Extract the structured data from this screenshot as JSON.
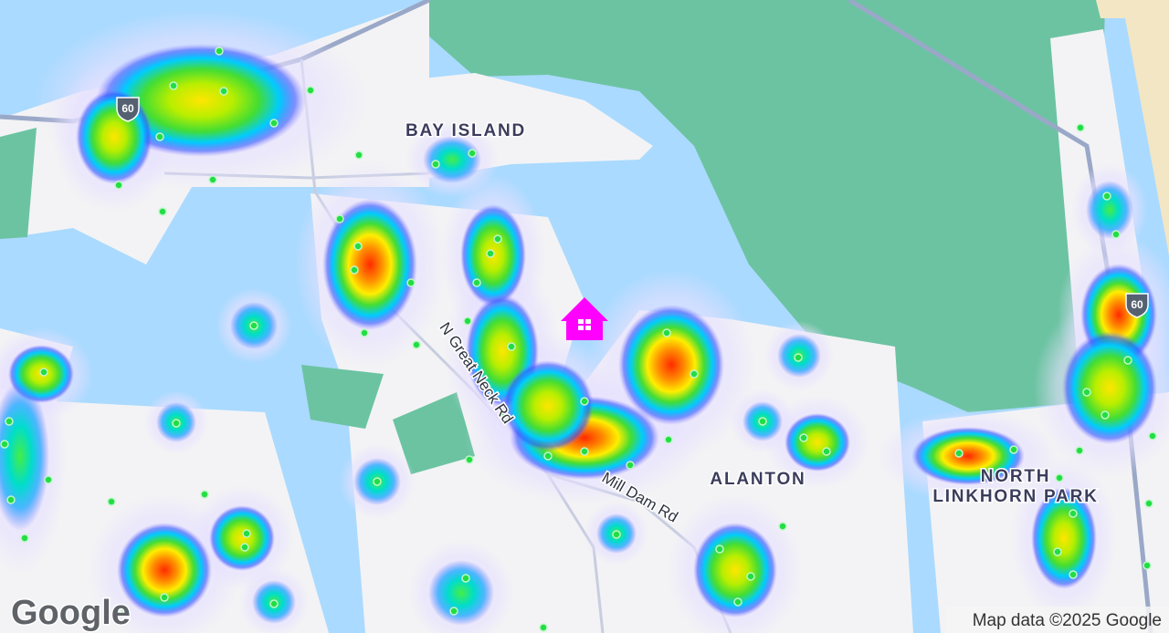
{
  "map": {
    "areas": [
      {
        "lines": [
          "BAY ISLAND"
        ]
      },
      {
        "lines": [
          "ALANTON"
        ]
      },
      {
        "lines": [
          "NORTH",
          "LINKHORN PARK"
        ]
      }
    ],
    "roads": [
      "N Great Neck Rd",
      "Mill Dam Rd"
    ],
    "shields": [
      "60",
      "60"
    ]
  },
  "attribution": "Map data ©2025 Google",
  "logo": "Google"
}
